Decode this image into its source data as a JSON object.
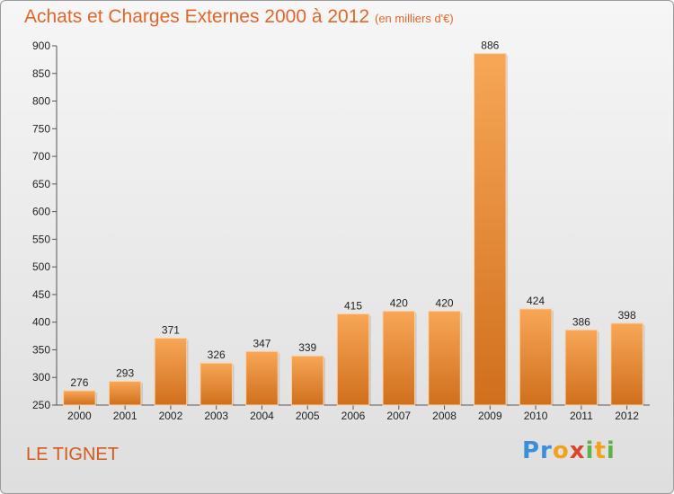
{
  "header": {
    "title": "Achats et Charges Externes 2000 à 2012",
    "unit": "(en milliers d'€)"
  },
  "footer": {
    "place": "LE TIGNET",
    "logo": "Proxiti"
  },
  "colors": {
    "bar_light": "#f7a757",
    "bar_dark": "#d06f1c",
    "title": "#e0672a"
  },
  "chart_data": {
    "type": "bar",
    "title": "Achats et Charges Externes 2000 à 2012",
    "subtitle": "(en milliers d'€)",
    "xlabel": "",
    "ylabel": "",
    "categories": [
      "2000",
      "2001",
      "2002",
      "2003",
      "2004",
      "2005",
      "2006",
      "2007",
      "2008",
      "2009",
      "2010",
      "2011",
      "2012"
    ],
    "values": [
      276,
      293,
      371,
      326,
      347,
      339,
      415,
      420,
      420,
      886,
      424,
      386,
      398
    ],
    "ylim": [
      250,
      900
    ],
    "yticks": [
      250,
      300,
      350,
      400,
      450,
      500,
      550,
      600,
      650,
      700,
      750,
      800,
      850,
      900
    ],
    "grid": false,
    "legend": "none",
    "data_labels": true
  }
}
